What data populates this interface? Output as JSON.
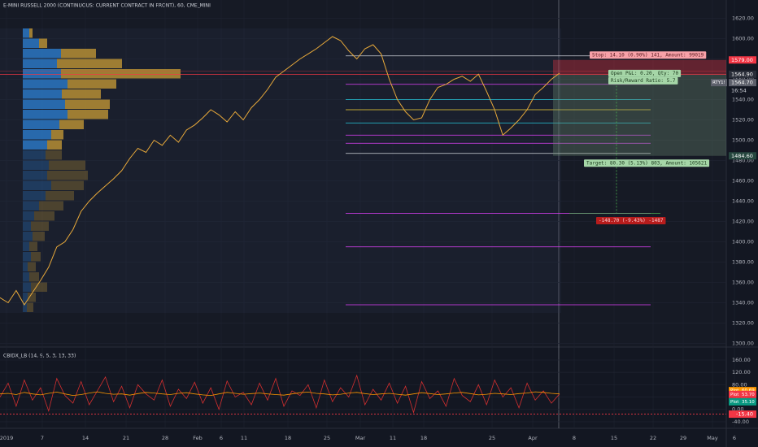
{
  "chart_data": [
    {
      "type": "line",
      "title": "E-MINI RUSSELL 2000 (CONTINUOUS: CURRENT CONTRACT IN FRONT), 60, CME_MINI",
      "series": [
        {
          "color": "#e8a93a",
          "values": [
            1345,
            1340,
            1352,
            1338,
            1350,
            1362,
            1375,
            1395,
            1400,
            1412,
            1430,
            1440,
            1448,
            1455,
            1462,
            1470,
            1482,
            1492,
            1488,
            1500,
            1495,
            1505,
            1498,
            1510,
            1515,
            1522,
            1530,
            1525,
            1518,
            1528,
            1520,
            1532,
            1540,
            1550,
            1562,
            1568,
            1574,
            1580,
            1585,
            1590,
            1596,
            1602,
            1598,
            1588,
            1580,
            1590,
            1594,
            1585,
            1560,
            1540,
            1528,
            1520,
            1522,
            1540,
            1552,
            1555,
            1560,
            1563,
            1558,
            1565,
            1548,
            1530,
            1505,
            1512,
            1520,
            1530,
            1545,
            1552,
            1560,
            1566
          ]
        }
      ],
      "ylim": [
        1298,
        1634
      ],
      "yticks": [
        {
          "value": 1620,
          "label": "1620.00"
        },
        {
          "value": 1600,
          "label": "1600.00"
        },
        {
          "value": 1580,
          "label": "1580.00"
        },
        {
          "value": 1560,
          "label": "1560.00"
        },
        {
          "value": 1540,
          "label": "1540.00"
        },
        {
          "value": 1520,
          "label": "1520.00"
        },
        {
          "value": 1500,
          "label": "1500.00"
        },
        {
          "value": 1480,
          "label": "1480.00"
        },
        {
          "value": 1460,
          "label": "1460.00"
        },
        {
          "value": 1440,
          "label": "1440.00"
        },
        {
          "value": 1420,
          "label": "1420.00"
        },
        {
          "value": 1400,
          "label": "1400.00"
        },
        {
          "value": 1380,
          "label": "1380.00"
        },
        {
          "value": 1360,
          "label": "1360.00"
        },
        {
          "value": 1340,
          "label": "1340.00"
        },
        {
          "value": 1320,
          "label": "1320.00"
        },
        {
          "value": 1300,
          "label": "1300.00"
        }
      ],
      "grid": true,
      "xtick_labels": [
        "2019",
        "7",
        "14",
        "21",
        "28",
        "Feb",
        "6",
        "11",
        "18",
        "25",
        "Mar",
        "11",
        "18",
        "25",
        "Apr",
        "8",
        "15",
        "22",
        "29",
        "May",
        "6"
      ],
      "volume_profile": {
        "bins": [
          1610,
          1600,
          1590,
          1580,
          1570,
          1560,
          1550,
          1540,
          1530,
          1520,
          1510,
          1500,
          1490,
          1480,
          1470,
          1460,
          1450,
          1440,
          1430,
          1420,
          1410,
          1400,
          1390,
          1380,
          1370,
          1360,
          1350,
          1340,
          1330
        ],
        "up": [
          8,
          20,
          47,
          42,
          47,
          55,
          48,
          52,
          55,
          45,
          35,
          30,
          28,
          32,
          30,
          35,
          28,
          20,
          14,
          10,
          12,
          8,
          10,
          6,
          8,
          10,
          6,
          5
        ],
        "down": [
          4,
          10,
          43,
          80,
          147,
          60,
          48,
          55,
          50,
          30,
          15,
          18,
          20,
          45,
          50,
          40,
          35,
          30,
          25,
          22,
          15,
          10,
          12,
          10,
          12,
          20,
          10,
          8
        ],
        "up_color": "#2a7fd1",
        "down_color": "#c99a2e"
      },
      "levels": [
        {
          "value": 1583,
          "color": "#d1d4dc"
        },
        {
          "value": 1555,
          "color": "#e040fb"
        },
        {
          "value": 1540,
          "color": "#26c6da"
        },
        {
          "value": 1530,
          "color": "#fdd835"
        },
        {
          "value": 1517,
          "color": "#26c6da"
        },
        {
          "value": 1505,
          "color": "#e040fb"
        },
        {
          "value": 1497,
          "color": "#e040fb"
        },
        {
          "value": 1487,
          "color": "#d1d4dc"
        },
        {
          "value": 1428,
          "color": "#e040fb"
        },
        {
          "value": 1395,
          "color": "#e040fb"
        },
        {
          "value": 1338,
          "color": "#e040fb"
        }
      ],
      "position": {
        "entry": 1564.9,
        "stop": 1579,
        "target": 1484.6,
        "loss_level": 1428,
        "stop_label": "Stop: 14.10 (0.90%) 141, Amount: 99019",
        "pnl_labels": [
          "Open P&L: 0.20, Qty: 70",
          "Risk/Reward Ratio: 5.7"
        ],
        "target_label": "Target: 80.30 (5.13%) 803, Amount: 105621",
        "loss_label": "-148.70 (-9.43%) -1487"
      },
      "price_labels": [
        {
          "value": 1579,
          "label": "1579.00",
          "color": "#f23645"
        },
        {
          "value": 1564.9,
          "label": "1564.90",
          "color": "#2a2e39"
        },
        {
          "value": 1564.7,
          "label": "1564.70",
          "color": "#5d606b"
        },
        {
          "value": 1484.6,
          "label": "1484.60",
          "color": "#26473f"
        }
      ],
      "symbol": "RTY1!",
      "countdown": "16:54"
    },
    {
      "type": "line",
      "title": "CBIDX_LB (14, 9, 5, 3, 13, 33)",
      "series": [
        {
          "color": "#d32f2f",
          "values": [
            40,
            85,
            10,
            95,
            30,
            70,
            -5,
            100,
            45,
            20,
            90,
            15,
            60,
            105,
            25,
            75,
            5,
            80,
            50,
            30,
            95,
            10,
            65,
            35,
            88,
            20,
            70,
            0,
            92,
            40,
            55,
            15,
            85,
            30,
            100,
            10,
            60,
            45,
            80,
            5,
            95,
            25,
            70,
            40,
            110,
            15,
            65,
            30,
            85,
            20,
            75,
            -10,
            90,
            35,
            60,
            10,
            100,
            45,
            25,
            80,
            15,
            95,
            40,
            70,
            5,
            85,
            30,
            60,
            20,
            50
          ]
        },
        {
          "color": "#ff9800",
          "values": [
            50,
            52,
            48,
            55,
            50,
            47,
            52,
            56,
            50,
            45,
            48,
            53,
            57,
            52,
            49,
            50,
            46,
            51,
            55,
            53,
            50,
            48,
            52,
            54,
            50,
            47,
            45,
            50,
            55,
            52,
            49,
            51,
            53,
            50,
            48,
            46,
            50,
            54,
            56,
            52,
            50,
            47,
            49,
            53,
            55,
            51,
            48,
            50,
            52,
            49,
            46,
            50,
            54,
            51,
            48,
            50,
            53,
            55,
            51,
            47,
            49,
            52,
            50,
            48,
            51,
            53,
            57,
            55,
            52,
            50
          ]
        }
      ],
      "ylim": [
        -56,
        194
      ],
      "yticks": [
        {
          "value": 160,
          "label": "160.00"
        },
        {
          "value": 120,
          "label": "120.00"
        },
        {
          "value": 80,
          "label": "80.00"
        },
        {
          "value": 40,
          "label": "40.00"
        },
        {
          "value": 0,
          "label": "0.00"
        },
        {
          "value": -40,
          "label": "-40.00"
        }
      ],
      "plot_tag": "Plot",
      "plot_labels": [
        {
          "value": 60.69,
          "label": "60.69",
          "color": "#ff9800"
        },
        {
          "value": 53.7,
          "label": "53.70",
          "color": "#f23645"
        },
        {
          "value": 35.1,
          "label": "35.10",
          "color": "#089981"
        }
      ],
      "last_line": {
        "value": -15.4,
        "label": "-15.40",
        "color": "#f23645"
      }
    }
  ]
}
